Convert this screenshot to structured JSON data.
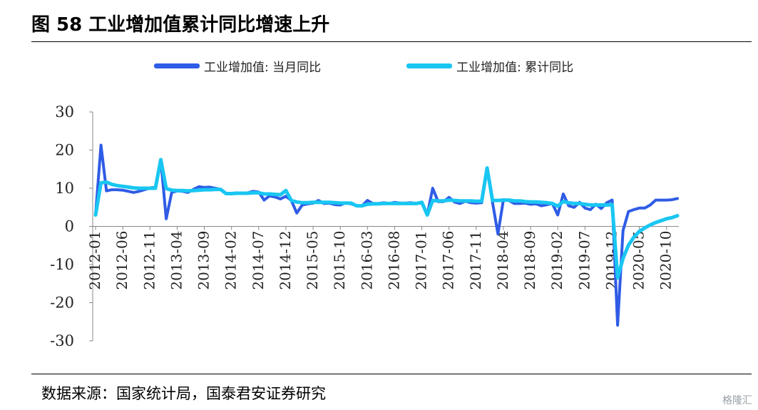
{
  "figure": {
    "title": "图 58  工业增加值累计同比增速上升",
    "source": "数据来源：国家统计局，国泰君安证券研究",
    "watermark": "格隆汇"
  },
  "chart_data": {
    "type": "line",
    "ylim": [
      -30,
      30
    ],
    "y_ticks": [
      30,
      20,
      10,
      0,
      -10,
      -20,
      -30
    ],
    "x_tick_labels": [
      "2012-01",
      "2012-06",
      "2012-11",
      "2013-04",
      "2013-09",
      "2014-02",
      "2014-07",
      "2014-12",
      "2015-05",
      "2015-10",
      "2016-03",
      "2016-08",
      "2017-01",
      "2017-06",
      "2017-11",
      "2018-04",
      "2018-09",
      "2019-02",
      "2019-07",
      "2019-12",
      "2020-05",
      "2020-10"
    ],
    "x_start": "2012-01",
    "x_end": "2020-12",
    "grid": false,
    "legend_position": "top",
    "series": [
      {
        "name": "工业增加值: 当月同比",
        "color": "#2f5ce6",
        "values": [
          3.0,
          21.3,
          9.3,
          9.6,
          9.6,
          9.5,
          9.2,
          8.9,
          9.2,
          9.6,
          10.1,
          10.3,
          17.5,
          2.0,
          8.9,
          9.3,
          9.2,
          8.9,
          9.7,
          10.4,
          10.2,
          10.3,
          10.0,
          9.7,
          8.6,
          8.6,
          8.8,
          8.7,
          8.8,
          9.2,
          9.0,
          6.9,
          8.0,
          7.7,
          7.2,
          7.9,
          6.8,
          3.5,
          5.6,
          5.9,
          6.1,
          6.8,
          6.0,
          6.1,
          5.7,
          5.6,
          6.2,
          5.9,
          5.4,
          5.4,
          6.8,
          6.0,
          6.0,
          6.2,
          6.0,
          6.3,
          6.1,
          6.1,
          6.2,
          6.0,
          6.3,
          3.0,
          10.0,
          6.5,
          6.5,
          7.6,
          6.4,
          6.0,
          6.6,
          6.2,
          6.1,
          6.2,
          15.3,
          6.3,
          -2.0,
          7.0,
          6.8,
          6.0,
          6.0,
          6.1,
          5.8,
          5.9,
          5.4,
          5.7,
          6.0,
          3.0,
          8.5,
          5.4,
          5.0,
          6.3,
          4.8,
          4.4,
          5.8,
          4.7,
          6.2,
          6.9,
          -25.9,
          -1.1,
          3.9,
          4.4,
          4.8,
          4.8,
          5.6,
          6.9,
          6.9,
          6.9,
          7.0,
          7.3
        ]
      },
      {
        "name": "工业增加值: 累计同比",
        "color": "#19c6f2",
        "values": [
          3.0,
          11.4,
          11.6,
          11.0,
          10.7,
          10.5,
          10.3,
          10.1,
          10.0,
          10.0,
          10.0,
          10.0,
          17.5,
          9.9,
          9.5,
          9.4,
          9.4,
          9.3,
          9.4,
          9.5,
          9.6,
          9.6,
          9.7,
          9.7,
          8.6,
          8.6,
          8.7,
          8.7,
          8.7,
          8.8,
          8.8,
          8.5,
          8.5,
          8.4,
          8.3,
          9.4,
          6.8,
          6.4,
          6.2,
          6.2,
          6.3,
          6.3,
          6.3,
          6.3,
          6.2,
          6.1,
          6.1,
          6.1,
          5.4,
          5.4,
          5.8,
          5.9,
          5.9,
          6.0,
          6.0,
          6.0,
          6.0,
          6.0,
          6.0,
          6.0,
          6.3,
          3.0,
          6.8,
          6.7,
          6.7,
          6.9,
          6.8,
          6.7,
          6.7,
          6.7,
          6.6,
          6.6,
          15.3,
          6.8,
          6.8,
          6.9,
          6.9,
          6.7,
          6.7,
          6.5,
          6.4,
          6.4,
          6.3,
          6.2,
          6.0,
          5.3,
          6.5,
          6.2,
          6.0,
          6.0,
          5.8,
          5.6,
          5.6,
          5.6,
          5.6,
          5.7,
          -13.5,
          -8.4,
          -4.9,
          -2.8,
          -1.3,
          -0.4,
          0.4,
          1.0,
          1.5,
          2.0,
          2.3,
          2.8
        ]
      }
    ]
  }
}
